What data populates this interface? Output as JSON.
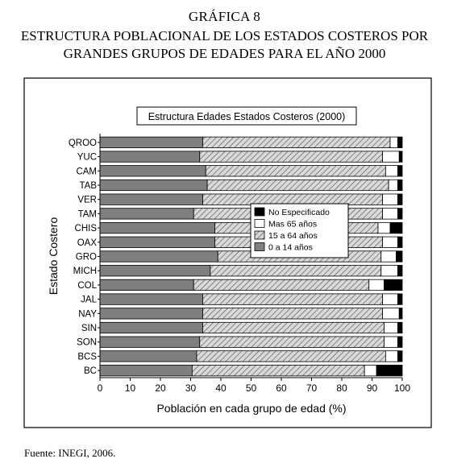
{
  "figure": {
    "label": "GRÁFICA 8",
    "title_line1": "ESTRUCTURA POBLACIONAL DE LOS ESTADOS COSTEROS POR",
    "title_line2": "GRANDES GRUPOS DE EDADES PARA EL AÑO 2000",
    "source": "Fuente: INEGI, 2006."
  },
  "chart_data": {
    "type": "bar",
    "orientation": "horizontal",
    "stacked": true,
    "title": "Estructura Edades Estados Costeros (2000)",
    "xlabel": "Población en cada grupo de edad (%)",
    "ylabel": "Estado Costero",
    "xlim": [
      0,
      100
    ],
    "xticks": [
      0,
      10,
      20,
      30,
      40,
      50,
      60,
      70,
      80,
      90,
      100
    ],
    "grid": false,
    "legend_position": "center-right",
    "categories": [
      "QROO",
      "YUC",
      "CAM",
      "TAB",
      "VER",
      "TAM",
      "CHIS",
      "OAX",
      "GRO",
      "MICH",
      "COL",
      "JAL",
      "NAY",
      "SIN",
      "SON",
      "BCS",
      "BC"
    ],
    "series": [
      {
        "name": "0 a 14 años",
        "fill": "solid-gray",
        "color": "#7f7f7f",
        "values": [
          34,
          33,
          35,
          35.5,
          34,
          31,
          38,
          38,
          39,
          36.5,
          31,
          34,
          34,
          34,
          33,
          32,
          30.5
        ]
      },
      {
        "name": "15 a 64 años",
        "fill": "hatched",
        "color": "#c8c8c8",
        "values": [
          62,
          60.5,
          59.5,
          60,
          59.5,
          62.5,
          54,
          55.5,
          54,
          56.5,
          58,
          59.5,
          59.5,
          60,
          61,
          62.5,
          57
        ]
      },
      {
        "name": "Mas 65 años",
        "fill": "white",
        "color": "#ffffff",
        "values": [
          2.5,
          5.5,
          4,
          3,
          5,
          5,
          4,
          5,
          5,
          5.5,
          5,
          5,
          5.5,
          4.5,
          4.5,
          4,
          4
        ]
      },
      {
        "name": "No Especificado",
        "fill": "black",
        "color": "#000000",
        "values": [
          1.5,
          1,
          1.5,
          1.5,
          1.5,
          1.5,
          4,
          1.5,
          2,
          1.5,
          6,
          1.5,
          1,
          1.5,
          1.5,
          1.5,
          8.5
        ]
      }
    ],
    "legend_order": [
      "No Especificado",
      "Mas 65 años",
      "15 a 64 años",
      "0 a 14 años"
    ]
  }
}
